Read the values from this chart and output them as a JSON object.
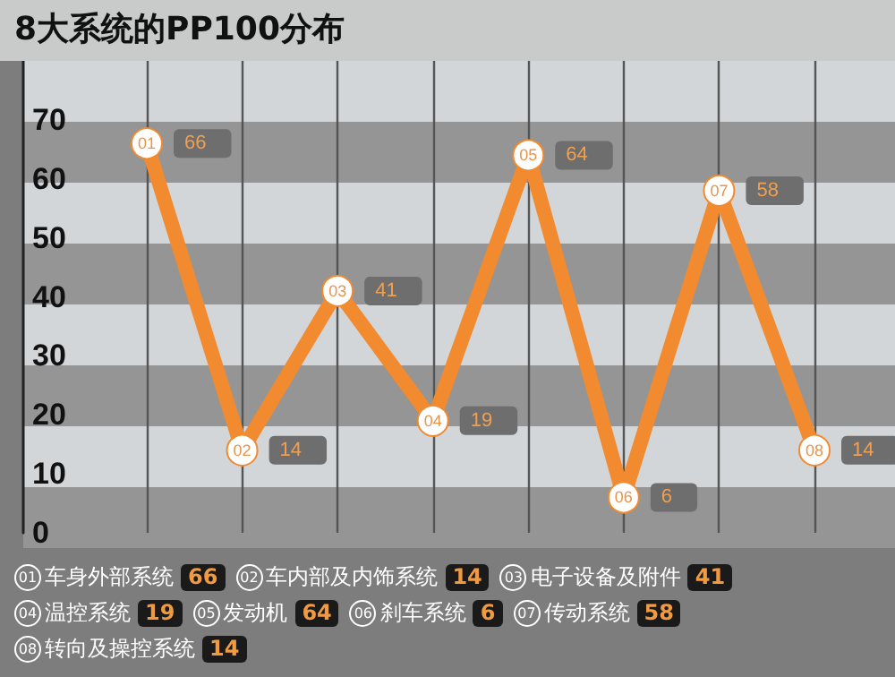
{
  "chart_data": {
    "type": "line",
    "title": "8大系统的PP100分布",
    "categories": [
      null,
      null,
      null,
      null,
      null,
      null,
      null,
      null
    ],
    "series": [
      {
        "color": "#f28a30",
        "values": [
          66,
          14,
          41,
          19,
          64,
          6,
          58,
          14
        ],
        "value_labels": [
          "66",
          "14",
          "41",
          "19",
          "64",
          "6",
          "58",
          "14"
        ]
      }
    ],
    "ylim": [
      0,
      80
    ],
    "yticks": [
      0,
      10,
      20,
      30,
      40,
      50,
      60,
      70
    ],
    "grid": "x",
    "marker": "circle",
    "annotations": [
      "01",
      "02",
      "03",
      "04",
      "05",
      "06",
      "07",
      "08",
      "01 车身外部系统 66",
      "02 车内部及内饰系统 14",
      "03 电子设备及附件 41",
      "04 温控系统 19",
      "05 发动机 64",
      "06 刹车系统 6",
      "07 传动系统 58",
      "08 转向及操控系统 14"
    ]
  }
}
